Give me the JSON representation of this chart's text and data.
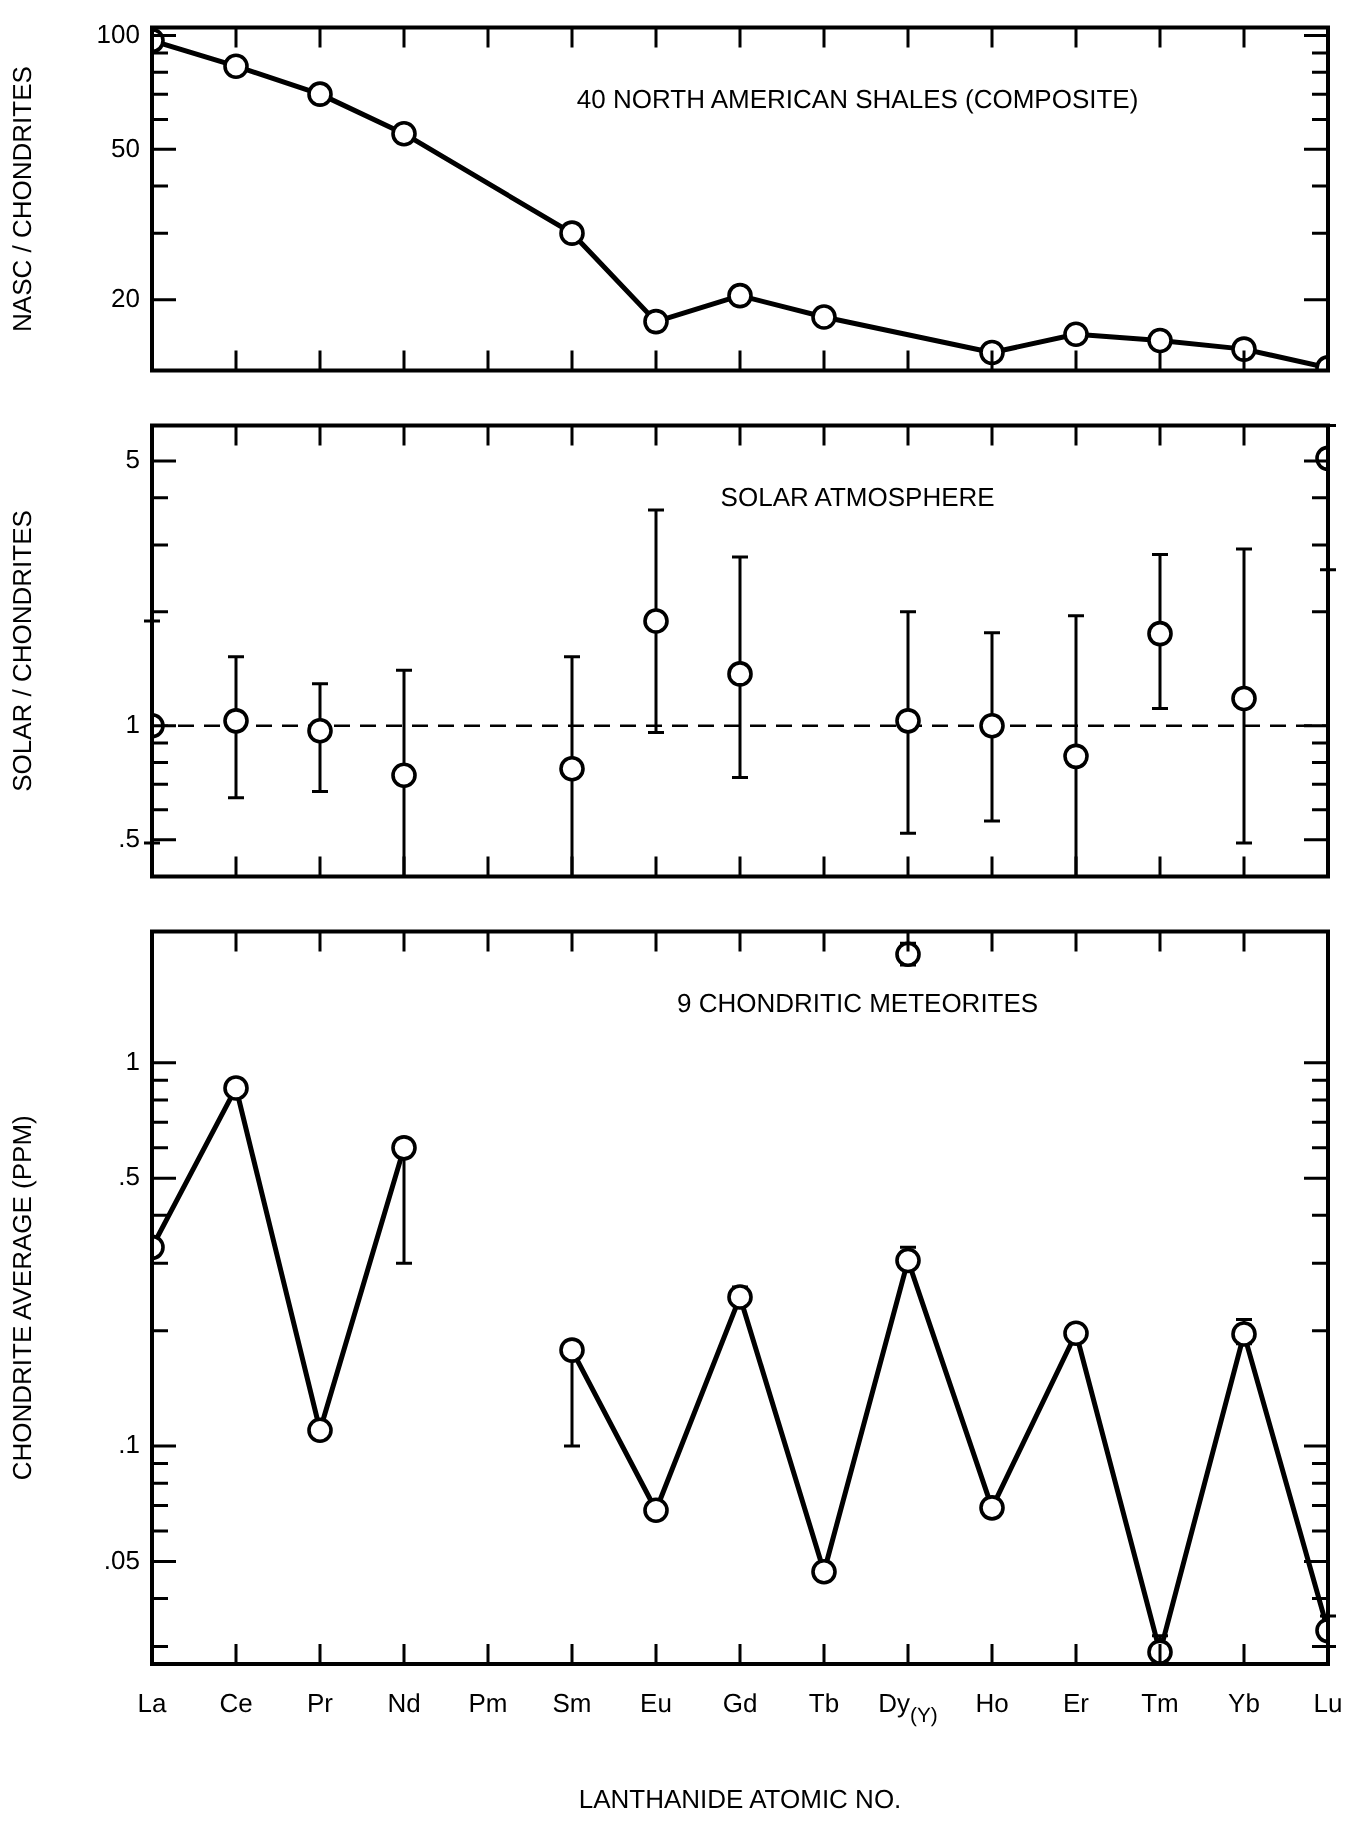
{
  "chart_data": [
    {
      "type": "line",
      "title": "40 NORTH AMERICAN SHALES (COMPOSITE)",
      "ylabel": "NASC / CHONDRITES",
      "categories": [
        "La",
        "Ce",
        "Pr",
        "Nd",
        "Pm",
        "Sm",
        "Eu",
        "Gd",
        "Tb",
        "Dy$_{(Y)}$",
        "Ho",
        "Er",
        "Tm",
        "Yb",
        "Lu"
      ],
      "series": [
        {
          "color": "#000000",
          "x": [
            "La",
            "Ce",
            "Pr",
            "Nd",
            "Sm",
            "Eu",
            "Gd",
            "Tb",
            "Ho",
            "Er",
            "Tm",
            "Yb",
            "Lu"
          ],
          "values": [
            97,
            83,
            70,
            55,
            30,
            17.5,
            20.5,
            18,
            14.5,
            16.2,
            15.6,
            14.8,
            13.2
          ]
        }
      ],
      "log": "y",
      "ylim": [
        13,
        105
      ],
      "yticks": [
        {
          "value": 20,
          "label": "20"
        },
        {
          "value": 30,
          "label": null
        },
        {
          "value": 40,
          "label": null
        },
        {
          "value": 50,
          "label": "50"
        },
        {
          "value": 60,
          "label": null
        },
        {
          "value": 70,
          "label": null
        },
        {
          "value": 80,
          "label": null
        },
        {
          "value": 90,
          "label": null
        },
        {
          "value": 100,
          "label": "100"
        }
      ],
      "tick_labels": "y",
      "marker": "circle",
      "line_style": "solid"
    },
    {
      "type": "scatter",
      "title": "SOLAR ATMOSPHERE",
      "ylabel": "SOLAR / CHONDRITES",
      "categories": [
        "La",
        "Ce",
        "Pr",
        "Nd",
        "Pm",
        "Sm",
        "Eu",
        "Gd",
        "Tb",
        "Dy$_{(Y)}$",
        "Ho",
        "Er",
        "Tm",
        "Yb",
        "Lu"
      ],
      "series": [
        {
          "color": "#000000",
          "values": [
            1.0,
            1.03,
            0.97,
            0.74,
            null,
            0.77,
            1.89,
            1.37,
            null,
            1.03,
            1.0,
            0.83,
            1.75,
            1.18,
            5.08
          ],
          "errors": [
            [
              0.49,
              1.89
            ],
            [
              0.645,
              1.52
            ],
            [
              0.67,
              1.29
            ],
            [
              0.4,
              1.4
            ],
            null,
            [
              0.4,
              1.52
            ],
            [
              0.96,
              3.71
            ],
            [
              0.73,
              2.79
            ],
            null,
            [
              0.52,
              2.0
            ],
            [
              0.56,
              1.76
            ],
            [
              0.4,
              1.95
            ],
            [
              1.11,
              2.83
            ],
            [
              0.49,
              2.93
            ],
            [
              2.58,
              6.2
            ]
          ]
        }
      ],
      "ref_lines": [
        {
          "axis": "y",
          "value": 1,
          "line_style": "dashed"
        }
      ],
      "log": "y",
      "ylim": [
        0.4,
        6.2
      ],
      "yticks": [
        {
          "value": 0.5,
          "label": ".5"
        },
        {
          "value": 0.6,
          "label": null
        },
        {
          "value": 0.7,
          "label": null
        },
        {
          "value": 0.8,
          "label": null
        },
        {
          "value": 0.9,
          "label": null
        },
        {
          "value": 1,
          "label": "1"
        },
        {
          "value": 2,
          "label": null
        },
        {
          "value": 3,
          "label": null
        },
        {
          "value": 4,
          "label": null
        },
        {
          "value": 5,
          "label": "5"
        }
      ],
      "tick_labels": "y",
      "marker": "circle"
    },
    {
      "type": "line",
      "title": "9 CHONDRITIC METEORITES",
      "ylabel": "CHONDRITE AVERAGE (PPM)",
      "xlabel": "LANTHANIDE ATOMIC NO.",
      "categories": [
        "La",
        "Ce",
        "Pr",
        "Nd",
        "Pm",
        "Sm",
        "Eu",
        "Gd",
        "Tb",
        "Dy$_{(Y)}$",
        "Ho",
        "Er",
        "Tm",
        "Yb",
        "Lu"
      ],
      "series": [
        {
          "color": "#000000",
          "values": [
            0.33,
            0.86,
            0.11,
            0.6,
            null,
            0.178,
            0.068,
            0.245,
            0.047,
            0.305,
            0.069,
            0.197,
            0.029,
            0.196,
            0.033
          ],
          "errors": [
            null,
            null,
            null,
            [
              0.3,
              0.6
            ],
            null,
            [
              0.1,
              0.178
            ],
            null,
            [
              0.235,
              0.26
            ],
            null,
            [
              0.3,
              0.33
            ],
            null,
            null,
            [
              0.027,
              0.032
            ],
            [
              0.185,
              0.214
            ],
            [
              0.03,
              0.036
            ]
          ]
        },
        {
          "type": "scatter",
          "color": "#000000",
          "x": [
            "Dy$_{(Y)}$"
          ],
          "values": [
            1.92
          ],
          "errors": [
            [
              1.8,
              2.05
            ]
          ]
        }
      ],
      "log": "y",
      "ylim": [
        0.027,
        2.2
      ],
      "yticks": [
        {
          "value": 0.03,
          "label": null
        },
        {
          "value": 0.04,
          "label": null
        },
        {
          "value": 0.05,
          "label": ".05"
        },
        {
          "value": 0.06,
          "label": null
        },
        {
          "value": 0.07,
          "label": null
        },
        {
          "value": 0.08,
          "label": null
        },
        {
          "value": 0.09,
          "label": null
        },
        {
          "value": 0.1,
          "label": ".1"
        },
        {
          "value": 0.2,
          "label": null
        },
        {
          "value": 0.3,
          "label": null
        },
        {
          "value": 0.4,
          "label": null
        },
        {
          "value": 0.5,
          "label": ".5"
        },
        {
          "value": 0.6,
          "label": null
        },
        {
          "value": 0.7,
          "label": null
        },
        {
          "value": 0.8,
          "label": null
        },
        {
          "value": 0.9,
          "label": null
        },
        {
          "value": 1,
          "label": "1"
        }
      ],
      "marker": "circle",
      "line_style": "solid"
    }
  ]
}
